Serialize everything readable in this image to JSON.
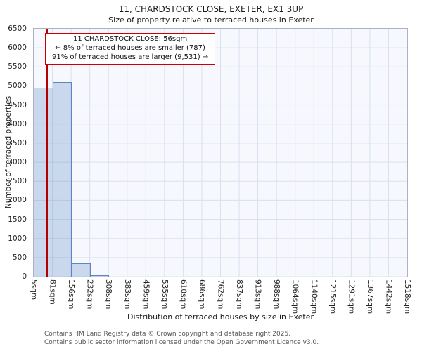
{
  "header": {
    "title": "11, CHARDSTOCK CLOSE, EXETER, EX1 3UP",
    "subtitle": "Size of property relative to terraced houses in Exeter"
  },
  "annotation": {
    "line1": "11 CHARDSTOCK CLOSE: 56sqm",
    "line2": "← 8% of terraced houses are smaller (787)",
    "line3": "91% of terraced houses are larger (9,531) →"
  },
  "chart_data": {
    "type": "bar",
    "title": "11, CHARDSTOCK CLOSE, EXETER, EX1 3UP",
    "subtitle": "Size of property relative to terraced houses in Exeter",
    "xlabel": "Distribution of terraced houses by size in Exeter",
    "ylabel": "Number of terraced properties",
    "categories": [
      "5sqm",
      "81sqm",
      "156sqm",
      "232sqm",
      "308sqm",
      "383sqm",
      "459sqm",
      "535sqm",
      "610sqm",
      "686sqm",
      "762sqm",
      "837sqm",
      "913sqm",
      "988sqm",
      "1064sqm",
      "1140sqm",
      "1215sqm",
      "1291sqm",
      "1367sqm",
      "1442sqm",
      "1518sqm"
    ],
    "values": [
      4950,
      5100,
      350,
      40,
      0,
      0,
      0,
      0,
      0,
      0,
      0,
      0,
      0,
      0,
      0,
      0,
      0,
      0,
      0,
      0
    ],
    "yticks": [
      0,
      500,
      1000,
      1500,
      2000,
      2500,
      3000,
      3500,
      4000,
      4500,
      5000,
      5500,
      6000,
      6500
    ],
    "ylim": [
      0,
      6500
    ],
    "grid": true,
    "legend": null,
    "marker": {
      "label": "11 CHARDSTOCK CLOSE",
      "value_sqm": 56,
      "bin_start_sqm": 5,
      "bin_end_sqm": 81,
      "color": "#b30000"
    },
    "stats": {
      "smaller_pct": 8,
      "smaller_count": 787,
      "larger_pct": 91,
      "larger_count": 9531
    },
    "colors": {
      "bar_fill": "#cbd8ee",
      "bar_border": "#5d84c3",
      "grid": "#d9e0ee",
      "plot_bg": "#f6f8fd",
      "marker": "#b30000",
      "annotation_border": "#cc0000"
    }
  },
  "footer": {
    "line1": "Contains HM Land Registry data © Crown copyright and database right 2025.",
    "line2": "Contains public sector information licensed under the Open Government Licence v3.0."
  }
}
